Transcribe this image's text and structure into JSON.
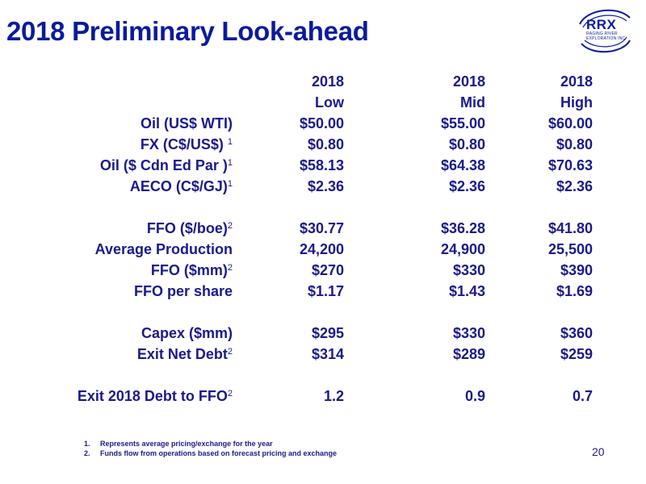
{
  "title": "2018 Preliminary Look-ahead",
  "logo": {
    "main": "RRX",
    "sub_line1": "RAGING RIVER",
    "sub_line2": "EXPLORATION INC."
  },
  "header": {
    "year": [
      "2018",
      "2018",
      "2018"
    ],
    "case": [
      "Low",
      "Mid",
      "High"
    ]
  },
  "rows": [
    {
      "label": "Oil (US$ WTI)",
      "sup": "",
      "values": [
        "$50.00",
        "$55.00",
        "$60.00"
      ]
    },
    {
      "label": "FX (C$/US$) ",
      "sup": "1",
      "values": [
        "$0.80",
        "$0.80",
        "$0.80"
      ]
    },
    {
      "label": "Oil ($ Cdn Ed Par )",
      "sup": "1",
      "values": [
        "$58.13",
        "$64.38",
        "$70.63"
      ]
    },
    {
      "label": "AECO (C$/GJ)",
      "sup": "1",
      "values": [
        "$2.36",
        "$2.36",
        "$2.36"
      ]
    },
    {
      "label": "FFO ($/boe)",
      "sup": "2",
      "values": [
        "$30.77",
        "$36.28",
        "$41.80"
      ]
    },
    {
      "label": "Average Production",
      "sup": "",
      "values": [
        "24,200",
        "24,900",
        "25,500"
      ]
    },
    {
      "label": "FFO ($mm)",
      "sup": "2",
      "values": [
        "$270",
        "$330",
        "$390"
      ]
    },
    {
      "label": "FFO per share",
      "sup": "",
      "values": [
        "$1.17",
        "$1.43",
        "$1.69"
      ]
    },
    {
      "label": "Capex ($mm)",
      "sup": "",
      "values": [
        "$295",
        "$330",
        "$360"
      ]
    },
    {
      "label": "Exit Net Debt",
      "sup": "2",
      "values": [
        "$314",
        "$289",
        "$259"
      ]
    },
    {
      "label": "Exit  2018 Debt to FFO",
      "sup": "2",
      "values": [
        "1.2",
        "0.9",
        "0.7"
      ]
    }
  ],
  "footnotes": [
    {
      "num": "1.",
      "text": "Represents average pricing/exchange for the year"
    },
    {
      "num": "2.",
      "text": "Funds flow from operations based on forecast pricing and exchange"
    }
  ],
  "page_number": "20",
  "colors": {
    "title": "#0b1a9e",
    "text": "#1a1a8c",
    "background": "#ffffff"
  }
}
